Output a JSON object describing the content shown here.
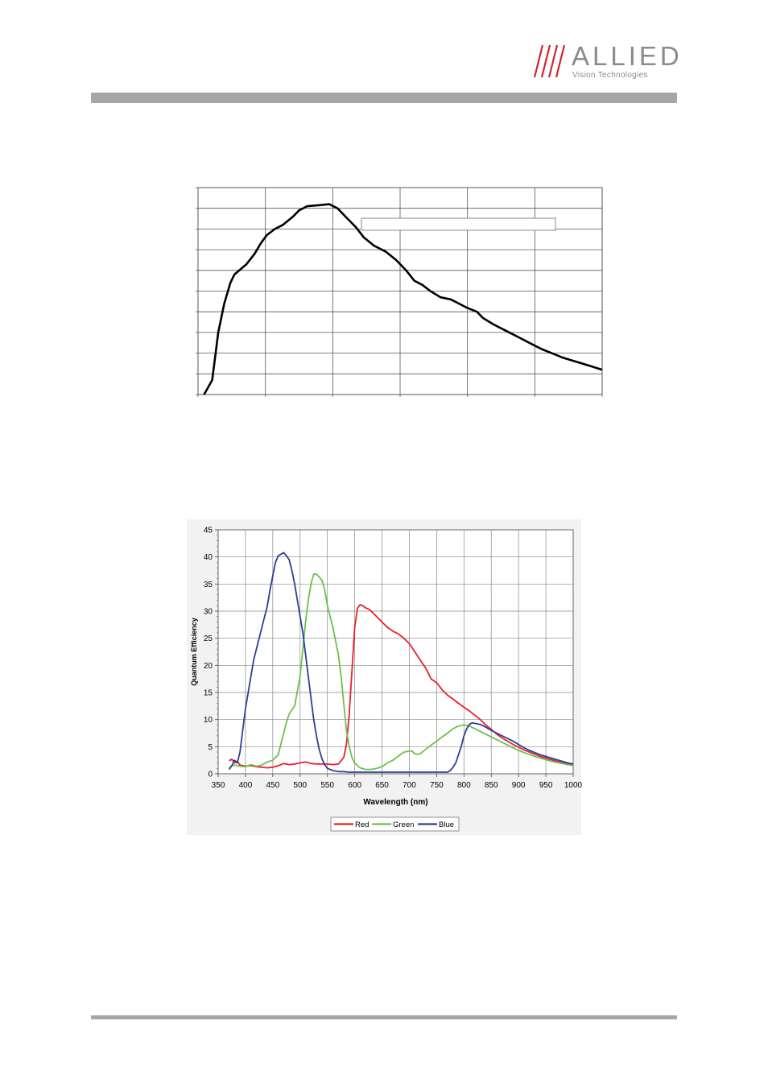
{
  "logo": {
    "name": "ALLIED",
    "tagline": "Vision Technologies",
    "color": "#8a8a8a",
    "slash_color": "#d2232a"
  },
  "chart_data": [
    {
      "type": "line",
      "title": "",
      "xlabel": "",
      "ylabel": "",
      "grid": true,
      "legend": "",
      "series": [
        {
          "color": "#000000",
          "points": [
            [
              0.015,
              0
            ],
            [
              0.035,
              0.07
            ],
            [
              0.05,
              0.3
            ],
            [
              0.065,
              0.44
            ],
            [
              0.08,
              0.54
            ],
            [
              0.09,
              0.58
            ],
            [
              0.12,
              0.63
            ],
            [
              0.14,
              0.68
            ],
            [
              0.155,
              0.73
            ],
            [
              0.17,
              0.77
            ],
            [
              0.19,
              0.8
            ],
            [
              0.21,
              0.82
            ],
            [
              0.235,
              0.86
            ],
            [
              0.25,
              0.89
            ],
            [
              0.27,
              0.91
            ],
            [
              0.3,
              0.915
            ],
            [
              0.325,
              0.92
            ],
            [
              0.345,
              0.9
            ],
            [
              0.37,
              0.85
            ],
            [
              0.39,
              0.81
            ],
            [
              0.41,
              0.76
            ],
            [
              0.435,
              0.72
            ],
            [
              0.465,
              0.69
            ],
            [
              0.49,
              0.65
            ],
            [
              0.515,
              0.6
            ],
            [
              0.535,
              0.55
            ],
            [
              0.555,
              0.53
            ],
            [
              0.575,
              0.5
            ],
            [
              0.6,
              0.47
            ],
            [
              0.625,
              0.46
            ],
            [
              0.645,
              0.44
            ],
            [
              0.665,
              0.42
            ],
            [
              0.69,
              0.4
            ],
            [
              0.705,
              0.37
            ],
            [
              0.73,
              0.34
            ],
            [
              0.76,
              0.31
            ],
            [
              0.79,
              0.28
            ],
            [
              0.82,
              0.25
            ],
            [
              0.85,
              0.22
            ],
            [
              0.875,
              0.2
            ],
            [
              0.9,
              0.18
            ],
            [
              0.925,
              0.165
            ],
            [
              0.95,
              0.15
            ],
            [
              0.975,
              0.135
            ],
            [
              1.0,
              0.12
            ]
          ]
        }
      ],
      "xlim": [
        0,
        1
      ],
      "ylim": [
        0,
        1
      ],
      "x_gridlines": 6,
      "y_gridlines": 10,
      "legend_box_empty": true
    },
    {
      "type": "line",
      "title": "",
      "xlabel": "Wavelength (nm)",
      "ylabel": "Quantum Efficiency",
      "xlim": [
        350,
        1000
      ],
      "ylim": [
        0,
        45
      ],
      "xticks": [
        350,
        400,
        450,
        500,
        550,
        600,
        650,
        700,
        750,
        800,
        850,
        900,
        950,
        1000
      ],
      "yticks": [
        0,
        5,
        10,
        15,
        20,
        25,
        30,
        35,
        40,
        45
      ],
      "grid": true,
      "legend": "bottom",
      "series": [
        {
          "name": "Red",
          "color": "#e8202a",
          "x": [
            370,
            375,
            380,
            385,
            390,
            395,
            400,
            410,
            420,
            430,
            440,
            450,
            460,
            470,
            480,
            490,
            500,
            510,
            520,
            530,
            540,
            550,
            560,
            570,
            580,
            585,
            590,
            595,
            600,
            605,
            610,
            615,
            620,
            625,
            630,
            635,
            640,
            650,
            660,
            670,
            680,
            690,
            700,
            710,
            720,
            730,
            740,
            750,
            760,
            770,
            780,
            790,
            800,
            810,
            820,
            830,
            840,
            850,
            860,
            870,
            880,
            890,
            900,
            910,
            920,
            930,
            940,
            950,
            960,
            970,
            980,
            990,
            1000
          ],
          "values": [
            2.4,
            2.7,
            2.0,
            2.3,
            1.6,
            1.5,
            1.4,
            1.5,
            1.3,
            1.2,
            1.1,
            1.2,
            1.5,
            1.9,
            1.7,
            1.8,
            2.0,
            2.2,
            1.9,
            1.8,
            1.8,
            1.8,
            1.7,
            1.8,
            3.0,
            5.5,
            11,
            19,
            27,
            30.5,
            31.2,
            31.0,
            30.6,
            30.4,
            30.0,
            29.5,
            29.0,
            28.0,
            27.0,
            26.3,
            25.8,
            25.0,
            24.0,
            22.5,
            21.0,
            19.5,
            17.5,
            16.8,
            15.5,
            14.5,
            13.8,
            13.0,
            12.3,
            11.6,
            10.8,
            10.0,
            9.0,
            8.2,
            7.3,
            6.6,
            6.0,
            5.4,
            4.9,
            4.4,
            4.0,
            3.6,
            3.2,
            2.9,
            2.6,
            2.3,
            2.0,
            1.8,
            1.6
          ]
        },
        {
          "name": "Green",
          "color": "#6cc04a",
          "x": [
            370,
            375,
            380,
            385,
            390,
            400,
            410,
            420,
            430,
            440,
            450,
            460,
            470,
            475,
            480,
            490,
            500,
            505,
            510,
            515,
            520,
            525,
            530,
            535,
            540,
            545,
            550,
            560,
            570,
            575,
            580,
            585,
            590,
            595,
            600,
            605,
            610,
            620,
            630,
            640,
            650,
            660,
            670,
            680,
            690,
            700,
            705,
            710,
            715,
            720,
            730,
            740,
            750,
            760,
            770,
            780,
            790,
            800,
            810,
            820,
            830,
            840,
            850,
            860,
            870,
            880,
            890,
            900,
            910,
            920,
            930,
            940,
            950,
            960,
            970,
            980,
            990,
            1000
          ],
          "values": [
            1.0,
            1.5,
            1.6,
            1.5,
            1.4,
            1.3,
            1.7,
            1.4,
            1.6,
            2.2,
            2.5,
            3.5,
            7.5,
            9.5,
            11,
            12.5,
            18,
            23,
            28,
            32,
            35,
            36.8,
            36.8,
            36.3,
            35.7,
            34,
            31,
            27,
            22,
            18,
            13,
            8,
            5,
            3,
            2,
            1.5,
            1.1,
            0.8,
            0.8,
            1.0,
            1.3,
            2.0,
            2.5,
            3.3,
            4.0,
            4.2,
            4.2,
            3.7,
            3.6,
            3.7,
            4.5,
            5.3,
            6.0,
            6.8,
            7.5,
            8.3,
            8.8,
            9.0,
            8.8,
            8.3,
            7.8,
            7.3,
            6.8,
            6.3,
            5.8,
            5.3,
            4.8,
            4.3,
            3.9,
            3.6,
            3.2,
            2.9,
            2.6,
            2.3,
            2.1,
            1.9,
            1.7,
            1.5
          ]
        },
        {
          "name": "Blue",
          "color": "#2e3d97",
          "x": [
            370,
            375,
            380,
            385,
            390,
            395,
            400,
            405,
            410,
            415,
            420,
            425,
            430,
            435,
            440,
            445,
            450,
            455,
            460,
            465,
            470,
            475,
            480,
            485,
            490,
            495,
            500,
            505,
            510,
            515,
            520,
            525,
            530,
            535,
            540,
            545,
            550,
            560,
            570,
            580,
            590,
            600,
            620,
            650,
            680,
            700,
            720,
            740,
            750,
            760,
            770,
            775,
            780,
            785,
            790,
            795,
            800,
            805,
            810,
            815,
            820,
            825,
            830,
            840,
            850,
            860,
            870,
            880,
            890,
            900,
            910,
            920,
            930,
            940,
            950,
            960,
            970,
            980,
            990,
            1000
          ],
          "values": [
            0.8,
            1.5,
            2.5,
            2.0,
            4,
            8,
            12,
            15,
            18,
            21,
            23,
            25,
            27,
            29,
            31,
            34,
            36.5,
            39,
            40.2,
            40.5,
            40.8,
            40.2,
            39.5,
            37.5,
            35,
            32,
            29,
            26,
            22,
            18,
            14,
            10,
            7,
            4.5,
            2.8,
            1.7,
            1.0,
            0.6,
            0.4,
            0.4,
            0.3,
            0.3,
            0.3,
            0.3,
            0.3,
            0.3,
            0.3,
            0.3,
            0.3,
            0.3,
            0.3,
            0.6,
            1.2,
            2.0,
            3.5,
            5.0,
            7.0,
            8.3,
            9.1,
            9.4,
            9.3,
            9.2,
            9.1,
            8.6,
            8.0,
            7.5,
            7.0,
            6.5,
            6.0,
            5.4,
            4.8,
            4.3,
            3.9,
            3.5,
            3.2,
            2.9,
            2.6,
            2.3,
            2.0,
            1.8
          ]
        }
      ]
    }
  ]
}
